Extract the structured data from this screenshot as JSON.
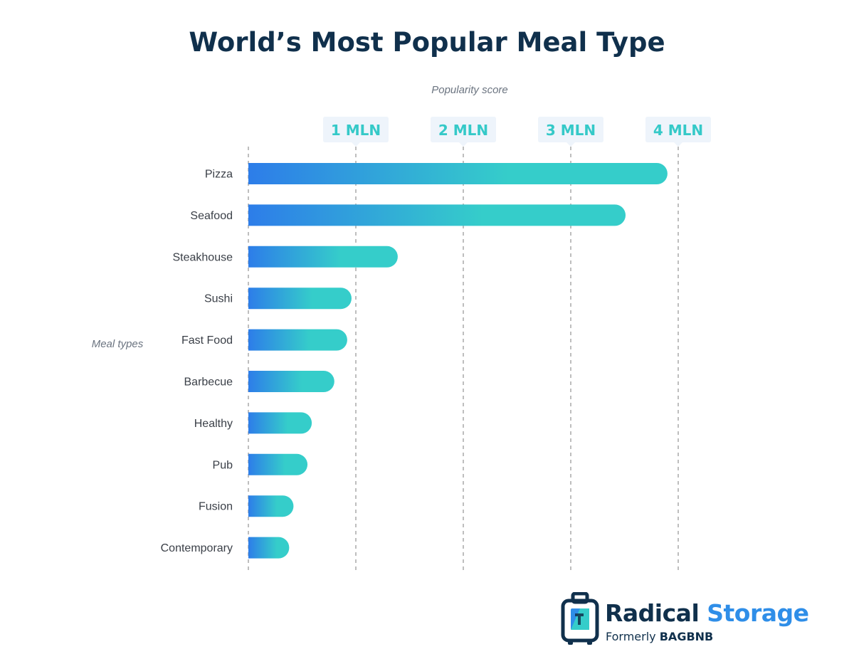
{
  "chart_data": {
    "type": "bar",
    "orientation": "horizontal",
    "title": "World’s Most Popular Meal Type",
    "xlabel": "Popularity score",
    "ylabel": "Meal types",
    "categories": [
      "Pizza",
      "Seafood",
      "Steakhouse",
      "Sushi",
      "Fast Food",
      "Barbecue",
      "Healthy",
      "Pub",
      "Fusion",
      "Contemporary"
    ],
    "values": [
      3900000,
      3510000,
      1390000,
      960000,
      920000,
      800000,
      590000,
      550000,
      420000,
      380000
    ],
    "xlim": [
      0,
      4000000
    ],
    "ticks": [
      1000000,
      2000000,
      3000000,
      4000000
    ],
    "tick_labels": [
      "1 MLN",
      "2 MLN",
      "3 MLN",
      "4 MLN"
    ],
    "grid": true,
    "legend": "none",
    "colors": {
      "bar_start": "#2d7de9",
      "bar_end": "#35cdca",
      "tick_text": "#35c9c8",
      "tick_badge": "#eef4fb",
      "grid": "#a8a8a8",
      "title": "#10304c"
    }
  },
  "brand": {
    "name_part1": "Radical",
    "name_part2": "Storage",
    "subtitle_prefix": "Formerly",
    "subtitle_brand": "BAGBNB",
    "colors": {
      "dark": "#10304c",
      "blue": "#2f8ee8",
      "teal": "#35cdca"
    }
  }
}
